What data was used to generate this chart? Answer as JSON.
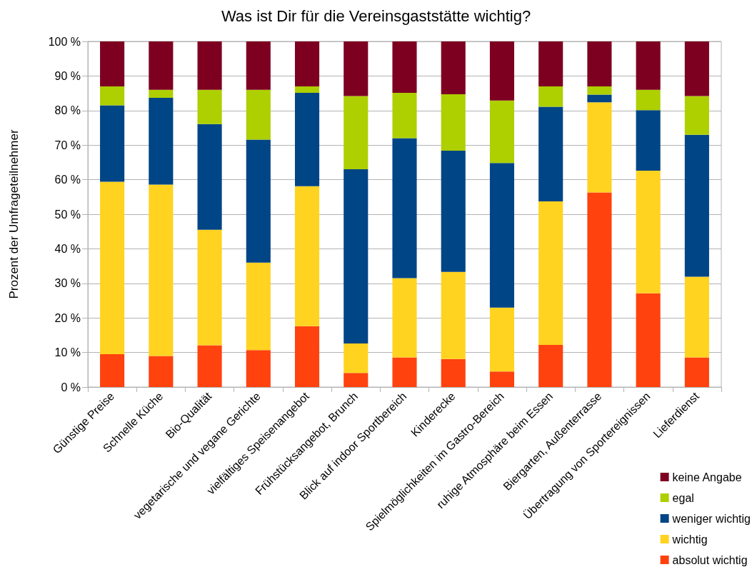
{
  "chart_data": {
    "type": "bar",
    "title": "Was ist Dir für die Vereinsgaststätte wichtig?",
    "ylabel": "Prozent der Umfrageteilnehmer",
    "categories": [
      "Günstige Preise",
      "Schnelle Küche",
      "Bio-Qualität",
      "vegetarische und vegane Gerichte",
      "vielfältiges Speisenangebot",
      "Frühstücksangebot, Brunch",
      "Blick auf indoor Sportbereich",
      "Kinderecke",
      "Spielmöglichkeiten im Gastro-Bereich",
      "ruhige Atmosphäre beim Essen",
      "Biergarten, Außenterrasse",
      "Übertragung von Sportereignissen",
      "Lieferdienst"
    ],
    "series": [
      {
        "name": "absolut wichtig",
        "color": "#ff420e",
        "values": [
          9.5,
          9.0,
          12.1,
          10.7,
          17.6,
          4.1,
          8.6,
          8.1,
          4.5,
          12.2,
          56.3,
          27.1,
          8.6
        ]
      },
      {
        "name": "wichtig",
        "color": "#ffd320",
        "values": [
          49.9,
          49.6,
          33.4,
          25.3,
          40.5,
          8.5,
          22.9,
          25.2,
          18.5,
          41.5,
          26.1,
          35.5,
          23.3
        ]
      },
      {
        "name": "weniger wichtig",
        "color": "#004586",
        "values": [
          22.1,
          25.1,
          30.6,
          35.6,
          27.0,
          50.4,
          40.5,
          35.1,
          41.8,
          27.4,
          2.2,
          17.5,
          41.1
        ]
      },
      {
        "name": "egal",
        "color": "#aecf00",
        "values": [
          5.5,
          2.3,
          9.9,
          14.4,
          1.9,
          21.2,
          13.1,
          16.3,
          18.1,
          5.9,
          2.4,
          5.9,
          11.2
        ]
      },
      {
        "name": "keine Angabe",
        "color": "#7e0021",
        "values": [
          13.0,
          14.0,
          14.0,
          14.0,
          13.0,
          15.8,
          14.9,
          15.3,
          17.1,
          13.0,
          13.0,
          14.0,
          15.8
        ]
      }
    ],
    "stacked": true,
    "ylim": [
      0,
      100
    ],
    "yticks": [
      {
        "value": 0,
        "label": "0 %"
      },
      {
        "value": 10,
        "label": "10 %"
      },
      {
        "value": 20,
        "label": "20 %"
      },
      {
        "value": 30,
        "label": "30 %"
      },
      {
        "value": 40,
        "label": "40 %"
      },
      {
        "value": 50,
        "label": "50 %"
      },
      {
        "value": 60,
        "label": "60 %"
      },
      {
        "value": 70,
        "label": "70 %"
      },
      {
        "value": 80,
        "label": "80 %"
      },
      {
        "value": 90,
        "label": "90 %"
      },
      {
        "value": 100,
        "label": "100 %"
      }
    ],
    "grid": "y",
    "legend": "bottom right"
  }
}
